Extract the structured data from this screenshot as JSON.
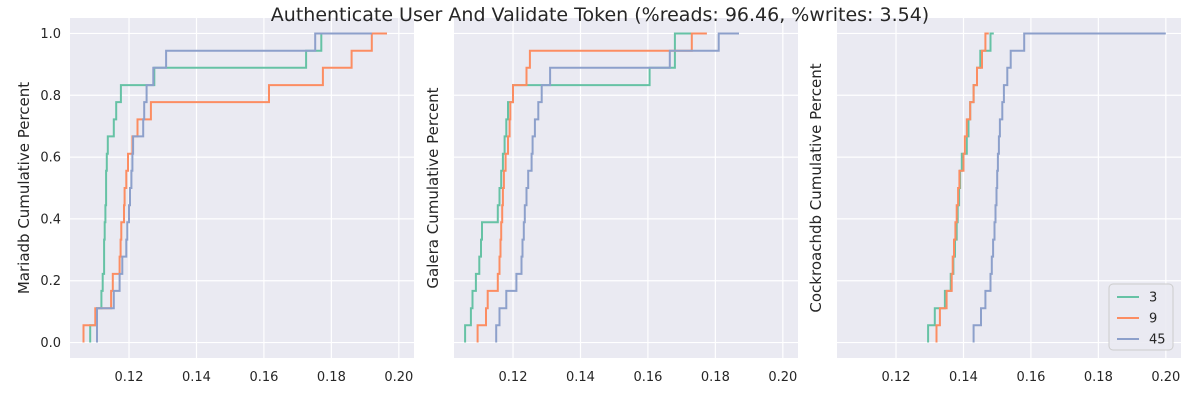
{
  "title": "Authenticate User And Validate Token (%reads: 96.46, %writes: 3.54)",
  "colors": {
    "background": "#eaeaf2",
    "grid": "#ffffff",
    "text": "#262626"
  },
  "legend": {
    "placement": "bottom-right",
    "panel": 2
  },
  "chart_data": [
    {
      "type": "line",
      "drawstyle": "step",
      "ylabel": "Mariadb Cumulative Percent",
      "xlim": [
        0.1025,
        0.2045
      ],
      "ylim": [
        -0.05,
        1.05
      ],
      "xticks": [
        "0.12",
        "0.14",
        "0.16",
        "0.18",
        "0.20"
      ],
      "yticks": [
        "0.0",
        "0.2",
        "0.4",
        "0.6",
        "0.8",
        "1.0"
      ],
      "grid": true,
      "series": [
        {
          "name": "3",
          "color": "#66c2a5",
          "points": [
            [
              0.1085,
              0.0
            ],
            [
              0.1085,
              0.056
            ],
            [
              0.1105,
              0.111
            ],
            [
              0.1118,
              0.167
            ],
            [
              0.1122,
              0.222
            ],
            [
              0.1126,
              0.333
            ],
            [
              0.1128,
              0.389
            ],
            [
              0.113,
              0.444
            ],
            [
              0.1132,
              0.556
            ],
            [
              0.1134,
              0.611
            ],
            [
              0.1137,
              0.667
            ],
            [
              0.1155,
              0.722
            ],
            [
              0.1162,
              0.778
            ],
            [
              0.1176,
              0.833
            ],
            [
              0.1275,
              0.833
            ],
            [
              0.1275,
              0.889
            ],
            [
              0.1725,
              0.889
            ],
            [
              0.1725,
              0.944
            ],
            [
              0.177,
              0.944
            ],
            [
              0.177,
              1.0
            ],
            [
              0.195,
              1.0
            ]
          ]
        },
        {
          "name": "9",
          "color": "#fc8d62",
          "points": [
            [
              0.1065,
              0.0
            ],
            [
              0.1065,
              0.056
            ],
            [
              0.11,
              0.111
            ],
            [
              0.1147,
              0.167
            ],
            [
              0.1152,
              0.222
            ],
            [
              0.1172,
              0.278
            ],
            [
              0.1175,
              0.333
            ],
            [
              0.1177,
              0.389
            ],
            [
              0.1185,
              0.444
            ],
            [
              0.1187,
              0.5
            ],
            [
              0.1192,
              0.556
            ],
            [
              0.1197,
              0.611
            ],
            [
              0.121,
              0.667
            ],
            [
              0.1225,
              0.722
            ],
            [
              0.1265,
              0.778
            ],
            [
              0.1615,
              0.778
            ],
            [
              0.1615,
              0.833
            ],
            [
              0.1775,
              0.833
            ],
            [
              0.1775,
              0.889
            ],
            [
              0.186,
              0.889
            ],
            [
              0.186,
              0.944
            ],
            [
              0.192,
              0.944
            ],
            [
              0.192,
              1.0
            ],
            [
              0.1965,
              1.0
            ]
          ]
        },
        {
          "name": "45",
          "color": "#8da0cb",
          "points": [
            [
              0.1105,
              0.0
            ],
            [
              0.1105,
              0.111
            ],
            [
              0.1155,
              0.167
            ],
            [
              0.1172,
              0.222
            ],
            [
              0.118,
              0.278
            ],
            [
              0.1192,
              0.333
            ],
            [
              0.1195,
              0.389
            ],
            [
              0.12,
              0.444
            ],
            [
              0.1203,
              0.5
            ],
            [
              0.1207,
              0.556
            ],
            [
              0.121,
              0.611
            ],
            [
              0.1212,
              0.667
            ],
            [
              0.1242,
              0.722
            ],
            [
              0.1245,
              0.778
            ],
            [
              0.1252,
              0.833
            ],
            [
              0.1272,
              0.889
            ],
            [
              0.131,
              0.944
            ],
            [
              0.1752,
              0.944
            ],
            [
              0.1752,
              1.0
            ],
            [
              0.192,
              1.0
            ]
          ]
        }
      ]
    },
    {
      "type": "line",
      "drawstyle": "step",
      "ylabel": "Galera Cumulative Percent",
      "xlim": [
        0.1025,
        0.2045
      ],
      "ylim": [
        -0.05,
        1.05
      ],
      "xticks": [
        "0.12",
        "0.14",
        "0.16",
        "0.18",
        "0.20"
      ],
      "yticks": [
        "",
        "",
        "",
        "",
        "",
        ""
      ],
      "grid": true,
      "series": [
        {
          "name": "3",
          "color": "#66c2a5",
          "points": [
            [
              0.1058,
              0.0
            ],
            [
              0.1058,
              0.056
            ],
            [
              0.1075,
              0.111
            ],
            [
              0.108,
              0.167
            ],
            [
              0.109,
              0.222
            ],
            [
              0.11,
              0.278
            ],
            [
              0.1105,
              0.333
            ],
            [
              0.1108,
              0.389
            ],
            [
              0.1155,
              0.444
            ],
            [
              0.116,
              0.5
            ],
            [
              0.1165,
              0.556
            ],
            [
              0.117,
              0.611
            ],
            [
              0.1175,
              0.667
            ],
            [
              0.118,
              0.722
            ],
            [
              0.1185,
              0.778
            ],
            [
              0.12,
              0.833
            ],
            [
              0.1605,
              0.833
            ],
            [
              0.1605,
              0.889
            ],
            [
              0.168,
              0.889
            ],
            [
              0.168,
              0.944
            ],
            [
              0.168,
              1.0
            ],
            [
              0.174,
              1.0
            ]
          ]
        },
        {
          "name": "9",
          "color": "#fc8d62",
          "points": [
            [
              0.1095,
              0.0
            ],
            [
              0.1095,
              0.056
            ],
            [
              0.112,
              0.111
            ],
            [
              0.1125,
              0.167
            ],
            [
              0.1155,
              0.222
            ],
            [
              0.116,
              0.278
            ],
            [
              0.1163,
              0.333
            ],
            [
              0.1165,
              0.389
            ],
            [
              0.1168,
              0.444
            ],
            [
              0.117,
              0.5
            ],
            [
              0.1173,
              0.556
            ],
            [
              0.1178,
              0.611
            ],
            [
              0.1185,
              0.667
            ],
            [
              0.119,
              0.722
            ],
            [
              0.1192,
              0.778
            ],
            [
              0.12,
              0.833
            ],
            [
              0.124,
              0.833
            ],
            [
              0.124,
              0.889
            ],
            [
              0.125,
              0.944
            ],
            [
              0.173,
              0.944
            ],
            [
              0.173,
              1.0
            ],
            [
              0.1775,
              1.0
            ]
          ]
        },
        {
          "name": "45",
          "color": "#8da0cb",
          "points": [
            [
              0.115,
              0.0
            ],
            [
              0.115,
              0.056
            ],
            [
              0.116,
              0.111
            ],
            [
              0.118,
              0.167
            ],
            [
              0.121,
              0.222
            ],
            [
              0.1225,
              0.278
            ],
            [
              0.1228,
              0.333
            ],
            [
              0.1232,
              0.389
            ],
            [
              0.1235,
              0.444
            ],
            [
              0.124,
              0.5
            ],
            [
              0.1245,
              0.556
            ],
            [
              0.1255,
              0.611
            ],
            [
              0.1258,
              0.667
            ],
            [
              0.1265,
              0.722
            ],
            [
              0.1275,
              0.778
            ],
            [
              0.1285,
              0.833
            ],
            [
              0.131,
              0.889
            ],
            [
              0.1665,
              0.889
            ],
            [
              0.1665,
              0.944
            ],
            [
              0.181,
              0.944
            ],
            [
              0.181,
              1.0
            ],
            [
              0.187,
              1.0
            ]
          ]
        }
      ]
    },
    {
      "type": "line",
      "drawstyle": "step",
      "ylabel": "Cockroachdb Cumulative Percent",
      "xlim": [
        0.1025,
        0.2045
      ],
      "ylim": [
        -0.05,
        1.05
      ],
      "xticks": [
        "0.12",
        "0.14",
        "0.16",
        "0.18",
        "0.20"
      ],
      "yticks": [
        "",
        "",
        "",
        "",
        "",
        ""
      ],
      "grid": true,
      "series": [
        {
          "name": "3",
          "color": "#66c2a5",
          "points": [
            [
              0.1295,
              0.0
            ],
            [
              0.1295,
              0.056
            ],
            [
              0.1315,
              0.111
            ],
            [
              0.1345,
              0.167
            ],
            [
              0.1362,
              0.222
            ],
            [
              0.137,
              0.278
            ],
            [
              0.1375,
              0.333
            ],
            [
              0.138,
              0.389
            ],
            [
              0.1383,
              0.444
            ],
            [
              0.1387,
              0.5
            ],
            [
              0.139,
              0.556
            ],
            [
              0.1395,
              0.611
            ],
            [
              0.141,
              0.667
            ],
            [
              0.1415,
              0.722
            ],
            [
              0.142,
              0.778
            ],
            [
              0.143,
              0.833
            ],
            [
              0.144,
              0.889
            ],
            [
              0.145,
              0.944
            ],
            [
              0.1465,
              0.944
            ],
            [
              0.148,
              1.0
            ],
            [
              0.149,
              1.0
            ]
          ]
        },
        {
          "name": "9",
          "color": "#fc8d62",
          "points": [
            [
              0.132,
              0.0
            ],
            [
              0.132,
              0.056
            ],
            [
              0.133,
              0.111
            ],
            [
              0.135,
              0.167
            ],
            [
              0.1365,
              0.222
            ],
            [
              0.1368,
              0.278
            ],
            [
              0.1372,
              0.333
            ],
            [
              0.1376,
              0.389
            ],
            [
              0.138,
              0.444
            ],
            [
              0.1384,
              0.5
            ],
            [
              0.1388,
              0.556
            ],
            [
              0.14,
              0.611
            ],
            [
              0.1404,
              0.667
            ],
            [
              0.141,
              0.722
            ],
            [
              0.142,
              0.778
            ],
            [
              0.143,
              0.833
            ],
            [
              0.144,
              0.889
            ],
            [
              0.1455,
              0.944
            ],
            [
              0.1465,
              1.0
            ],
            [
              0.1475,
              1.0
            ]
          ]
        },
        {
          "name": "45",
          "color": "#8da0cb",
          "points": [
            [
              0.143,
              0.0
            ],
            [
              0.143,
              0.056
            ],
            [
              0.1452,
              0.111
            ],
            [
              0.1465,
              0.167
            ],
            [
              0.148,
              0.222
            ],
            [
              0.1484,
              0.278
            ],
            [
              0.1488,
              0.333
            ],
            [
              0.1492,
              0.389
            ],
            [
              0.1495,
              0.444
            ],
            [
              0.1498,
              0.5
            ],
            [
              0.15,
              0.556
            ],
            [
              0.1502,
              0.611
            ],
            [
              0.1505,
              0.667
            ],
            [
              0.1508,
              0.722
            ],
            [
              0.1515,
              0.778
            ],
            [
              0.152,
              0.833
            ],
            [
              0.153,
              0.889
            ],
            [
              0.154,
              0.944
            ],
            [
              0.158,
              1.0
            ],
            [
              0.2,
              1.0
            ]
          ]
        }
      ]
    }
  ]
}
